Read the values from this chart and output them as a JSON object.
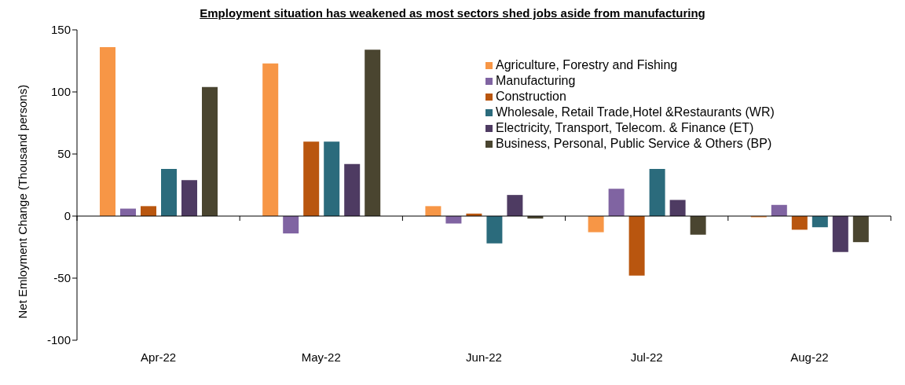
{
  "chart_data": {
    "type": "bar",
    "title": "Employment situation has weakened as most sectors shed jobs aside from manufacturing",
    "ylabel": "Net Emloyment Change (Thousand persons)",
    "categories": [
      "Apr-22",
      "May-22",
      "Jun-22",
      "Jul-22",
      "Aug-22"
    ],
    "series": [
      {
        "name": "Agriculture, Forestry and Fishing",
        "color": "#f79646",
        "values": [
          136,
          123,
          8,
          -13,
          -1
        ]
      },
      {
        "name": "Manufacturing",
        "color": "#8064a2",
        "values": [
          6,
          -14,
          -6,
          22,
          9
        ]
      },
      {
        "name": "Construction",
        "color": "#b9560f",
        "values": [
          8,
          60,
          2,
          -48,
          -11
        ]
      },
      {
        "name": "Wholesale, Retail Trade,Hotel &Restaurants (WR)",
        "color": "#2b6b7c",
        "values": [
          38,
          60,
          -22,
          38,
          -9
        ]
      },
      {
        "name": "Electricity, Transport, Telecom. & Finance (ET)",
        "color": "#4e3b62",
        "values": [
          29,
          42,
          17,
          13,
          -29
        ]
      },
      {
        "name": "Business, Personal, Public Service & Others (BP)",
        "color": "#4a4530",
        "values": [
          104,
          134,
          -2,
          -15,
          -21
        ]
      }
    ],
    "ylim": [
      -100,
      150
    ],
    "yticks": [
      -100,
      -50,
      0,
      50,
      100,
      150
    ],
    "grid": false,
    "ref_lines": [
      {
        "axis": "y",
        "value": 0,
        "color": "#000000"
      }
    ],
    "legend": "top right"
  }
}
